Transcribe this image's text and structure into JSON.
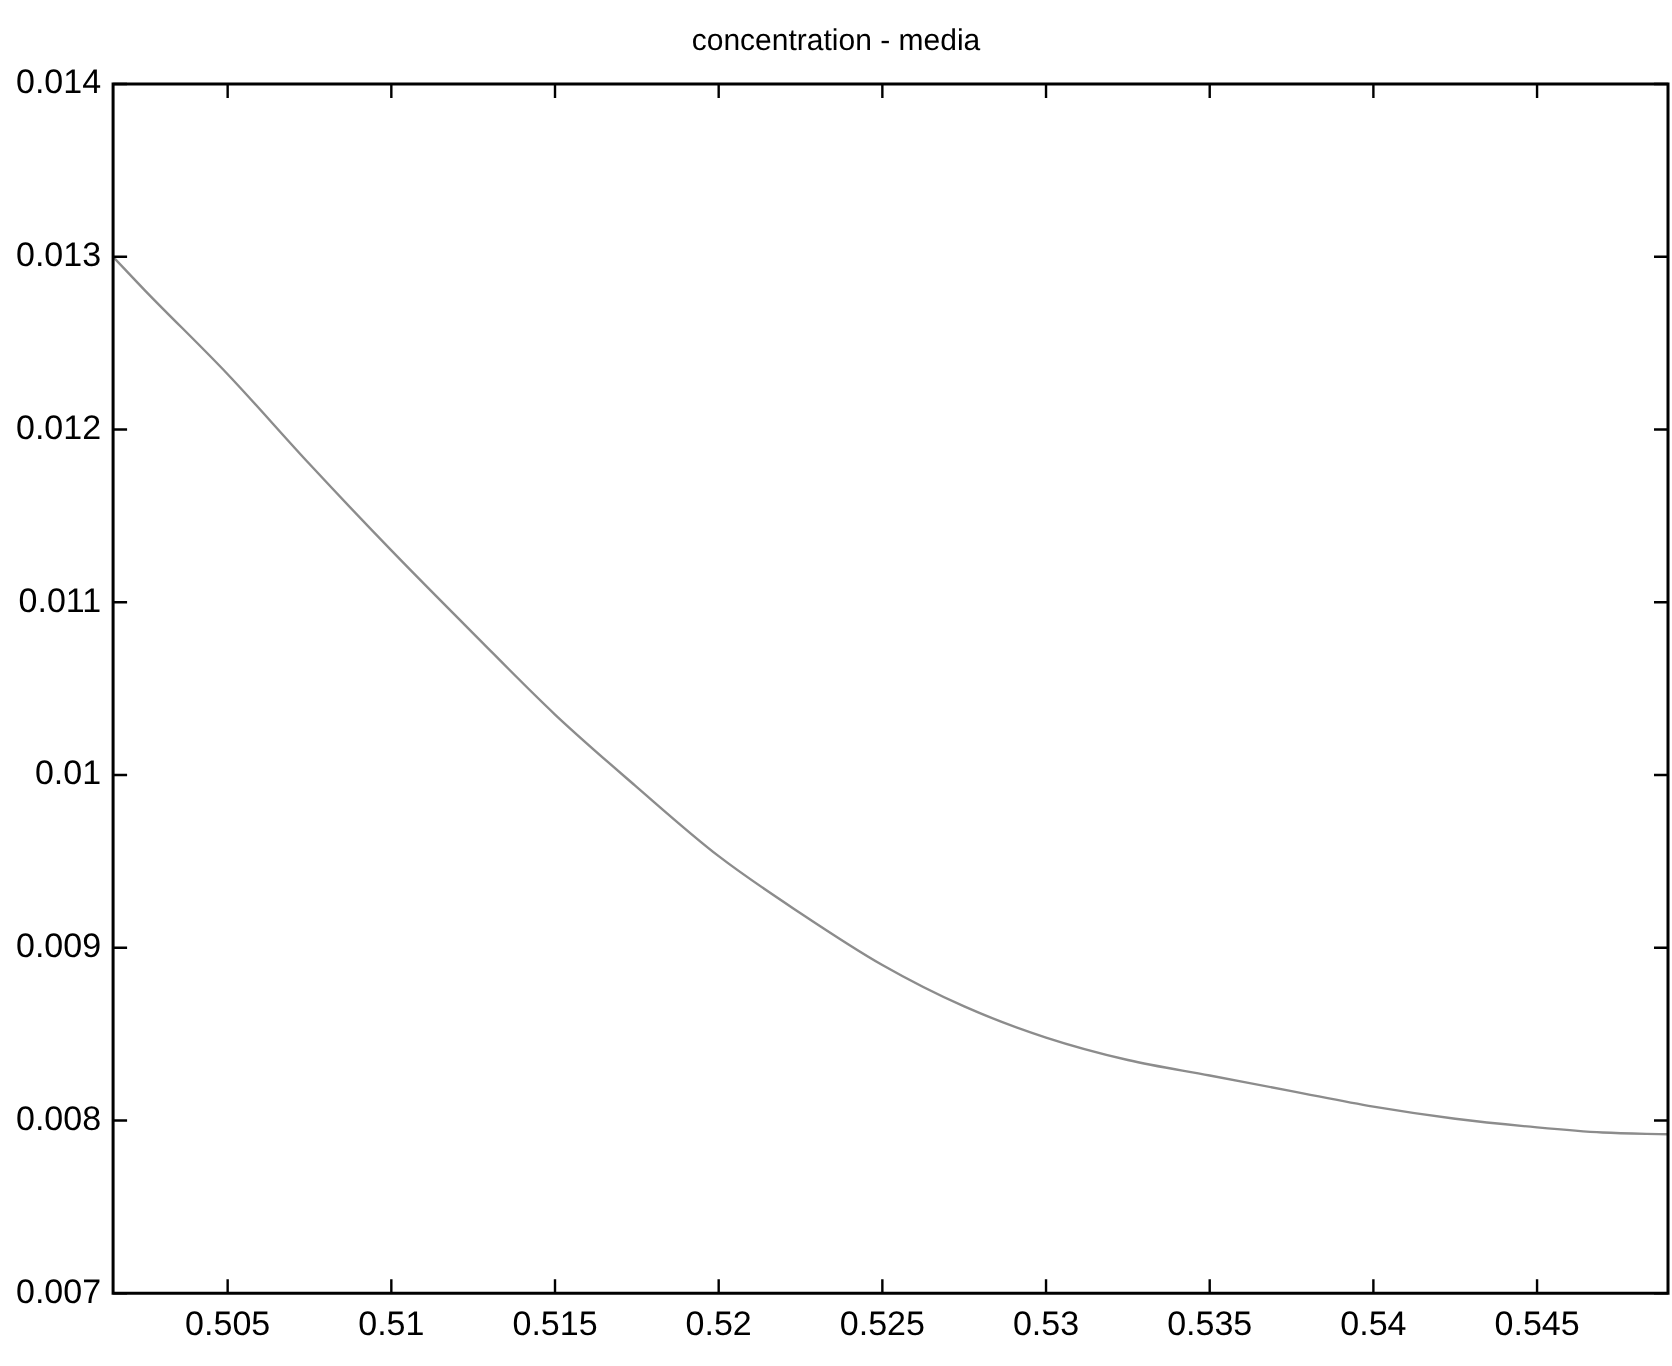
{
  "chart_data": {
    "type": "line",
    "title": "concentration - media",
    "x": [
      0.5015,
      0.5025,
      0.505,
      0.5075,
      0.51,
      0.5125,
      0.515,
      0.5175,
      0.52,
      0.5225,
      0.525,
      0.5275,
      0.53,
      0.5325,
      0.535,
      0.5375,
      0.54,
      0.5425,
      0.545,
      0.547,
      0.549
    ],
    "series": [
      {
        "color": "#8c8c8c",
        "values": [
          0.013,
          0.0128,
          0.01232,
          0.0118,
          0.0113,
          0.01082,
          0.01035,
          0.00993,
          0.00953,
          0.0092,
          0.0089,
          0.00866,
          0.00848,
          0.00835,
          0.00826,
          0.00817,
          0.00808,
          0.00801,
          0.00796,
          0.00793,
          0.00792
        ]
      }
    ],
    "xlim": [
      0.5015,
      0.549
    ],
    "xticks": [
      0.505,
      0.51,
      0.515,
      0.52,
      0.525,
      0.53,
      0.535,
      0.54,
      0.545
    ],
    "ylim": [
      0.007,
      0.014
    ],
    "yticks": [
      0.007,
      0.008,
      0.009,
      0.01,
      0.011,
      0.012,
      0.013,
      0.014
    ],
    "grid": false,
    "legend": false,
    "marker": "none",
    "line_style": "solid"
  }
}
